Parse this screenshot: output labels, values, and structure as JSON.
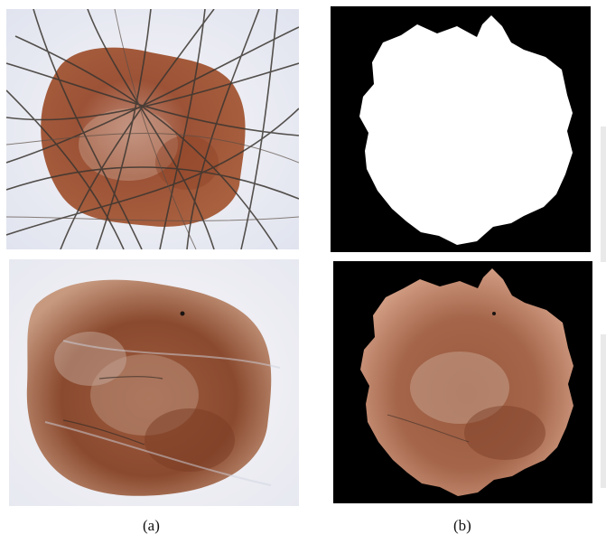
{
  "figure": {
    "captions": [
      "(a)",
      "(b)"
    ],
    "panels": [
      {
        "id": "a1",
        "icon": "dermoscopy-image-with-hair"
      },
      {
        "id": "b1",
        "icon": "binary-lesion-mask"
      },
      {
        "id": "a2",
        "icon": "dermoscopy-image-hair-removed"
      },
      {
        "id": "b2",
        "icon": "segmented-lesion-on-black"
      }
    ],
    "colors": {
      "skin": "#eef0f6",
      "lesion_dark": "#8a4a32",
      "lesion_mid": "#b06a4a",
      "lesion_light": "#c98f72",
      "hair": "#3a3530",
      "mask_fg": "#ffffff",
      "mask_bg": "#000000"
    }
  }
}
